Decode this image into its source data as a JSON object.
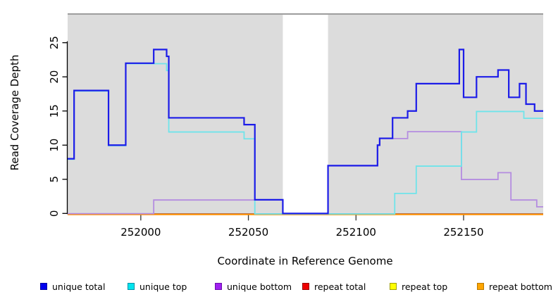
{
  "figure": {
    "x_axis_title": "Coordinate in Reference Genome",
    "y_axis_title": "Read Coverage Depth"
  },
  "chart_data": {
    "type": "line",
    "style": "step-after",
    "xlabel": "Coordinate in Reference Genome",
    "ylabel": "Read Coverage Depth",
    "xlim": [
      251966,
      252187
    ],
    "ylim": [
      0,
      29.5
    ],
    "x_ticks": [
      252000,
      252050,
      252100,
      252150
    ],
    "y_ticks": [
      0,
      5,
      10,
      15,
      20,
      25
    ],
    "grid": false,
    "background_color": "#ffffff",
    "shaded_regions": [
      {
        "name": "left-shaded-region",
        "x0": 251966,
        "x1": 252066,
        "color": "#dcdcdc"
      },
      {
        "name": "right-shaded-region",
        "x0": 252087,
        "x1": 252187,
        "color": "#dcdcdc"
      }
    ],
    "mask_gap": {
      "x0": 252066,
      "x1": 252087,
      "color": "#ffffff"
    },
    "top_bar": {
      "value": 29.2,
      "color": "#999999"
    },
    "series": [
      {
        "name": "unique total",
        "color": "#1c1ce8",
        "points": [
          [
            251966,
            8
          ],
          [
            251969,
            18
          ],
          [
            251985,
            10
          ],
          [
            251993,
            22
          ],
          [
            252006,
            24
          ],
          [
            252012,
            23
          ],
          [
            252013,
            14
          ],
          [
            252048,
            13
          ],
          [
            252053,
            2
          ],
          [
            252066,
            0
          ],
          [
            252087,
            7
          ],
          [
            252110,
            10
          ],
          [
            252111,
            11
          ],
          [
            252117,
            14
          ],
          [
            252124,
            15
          ],
          [
            252128,
            19
          ],
          [
            252148,
            24
          ],
          [
            252150,
            17
          ],
          [
            252156,
            20
          ],
          [
            252166,
            21
          ],
          [
            252171,
            17
          ],
          [
            252176,
            19
          ],
          [
            252179,
            16
          ],
          [
            252183,
            15
          ],
          [
            252187,
            15
          ]
        ]
      },
      {
        "name": "unique top",
        "color": "#6fe4ea",
        "points": [
          [
            251966,
            8
          ],
          [
            251969,
            18
          ],
          [
            251985,
            10
          ],
          [
            251993,
            22
          ],
          [
            252012,
            21
          ],
          [
            252013,
            12
          ],
          [
            252048,
            11
          ],
          [
            252053,
            0
          ],
          [
            252118,
            3
          ],
          [
            252128,
            7
          ],
          [
            252149,
            12
          ],
          [
            252156,
            15
          ],
          [
            252178,
            14
          ],
          [
            252187,
            14
          ]
        ]
      },
      {
        "name": "unique bottom",
        "color": "#b48ce0",
        "points": [
          [
            251966,
            0
          ],
          [
            252006,
            2
          ],
          [
            252066,
            0
          ],
          [
            252087,
            7
          ],
          [
            252110,
            10
          ],
          [
            252111,
            11
          ],
          [
            252124,
            12
          ],
          [
            252149,
            5
          ],
          [
            252166,
            6
          ],
          [
            252172,
            2
          ],
          [
            252184,
            1
          ],
          [
            252187,
            1
          ]
        ]
      },
      {
        "name": "repeat total",
        "color": "#e83054",
        "points": [
          [
            251966,
            0
          ],
          [
            252187,
            0
          ]
        ]
      },
      {
        "name": "repeat top",
        "color": "#f0e800",
        "points": [
          [
            251966,
            0
          ],
          [
            252187,
            0
          ]
        ]
      },
      {
        "name": "repeat bottom",
        "color": "#ff9000",
        "points": [
          [
            251966,
            0
          ],
          [
            252187,
            0
          ]
        ]
      }
    ],
    "draw_order": [
      "repeat total",
      "repeat top",
      "repeat bottom",
      "unique bottom",
      "unique top",
      "unique total"
    ],
    "legend": [
      {
        "label": "unique total",
        "fill": "#0000ee",
        "border": "#0000a0"
      },
      {
        "label": "unique top",
        "fill": "#00e5ee",
        "border": "#0090a8"
      },
      {
        "label": "unique bottom",
        "fill": "#a020f0",
        "border": "#6a0dad"
      },
      {
        "label": "repeat total",
        "fill": "#ee0000",
        "border": "#990000"
      },
      {
        "label": "repeat top",
        "fill": "#ffff00",
        "border": "#a0a000"
      },
      {
        "label": "repeat bottom",
        "fill": "#ffa500",
        "border": "#b87800"
      }
    ],
    "legend_position": "bottom"
  }
}
